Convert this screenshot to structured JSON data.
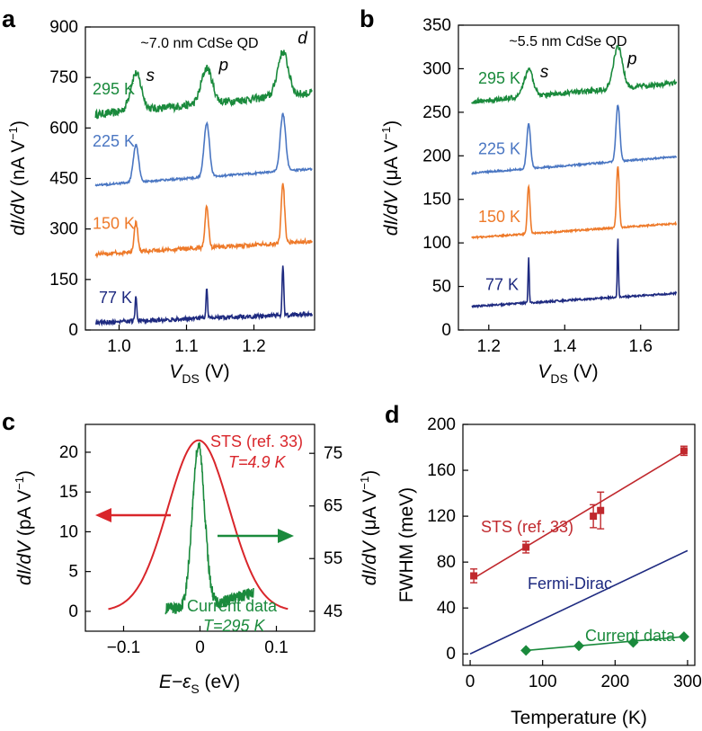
{
  "chart_data": [
    {
      "panel": "a",
      "type": "line",
      "title": "~7.0 nm CdSe QD",
      "xlabel": {
        "main": "V",
        "sub": "DS",
        "unit": " (V)"
      },
      "ylabel": {
        "italic": "dI/dV",
        "unit": " (nA V",
        "sup": "−1",
        "close": ")"
      },
      "xlim": [
        0.95,
        1.29
      ],
      "ylim": [
        0,
        900
      ],
      "xticks": [
        1.0,
        1.1,
        1.2
      ],
      "xtick_labels": [
        "1.0",
        "1.1",
        "1.2"
      ],
      "yticks": [
        0,
        150,
        300,
        450,
        600,
        750,
        900
      ],
      "ytick_labels": [
        "0",
        "150",
        "300",
        "450",
        "600",
        "750",
        "900"
      ],
      "peak_labels": [
        {
          "text": "s",
          "x": 1.04,
          "y": 740
        },
        {
          "text": "p",
          "x": 1.148,
          "y": 770
        },
        {
          "text": "d",
          "x": 1.265,
          "y": 850
        }
      ],
      "series": [
        {
          "name": "295 K",
          "color": "#1a8a3c",
          "base": 640,
          "slope": 200,
          "start": 0.965,
          "width": 0.008,
          "heights": [
            110,
            105,
            130
          ],
          "noise": 12,
          "label_y": 700
        },
        {
          "name": "225 K",
          "color": "#4a76c2",
          "base": 430,
          "slope": 150,
          "start": 0.965,
          "width": 0.004,
          "heights": [
            110,
            160,
            170
          ],
          "noise": 3,
          "label_y": 545
        },
        {
          "name": "150 K",
          "color": "#ee7a2a",
          "base": 225,
          "slope": 120,
          "start": 0.965,
          "width": 0.0025,
          "heights": [
            90,
            125,
            180
          ],
          "noise": 6,
          "label_y": 300
        },
        {
          "name": "77 K",
          "color": "#1e2a80",
          "base": 22,
          "slope": 80,
          "start": 0.965,
          "width": 0.0012,
          "heights": [
            75,
            85,
            145
          ],
          "noise": 6,
          "label_y": 80
        }
      ],
      "peak_centers": [
        1.025,
        1.13,
        1.243
      ]
    },
    {
      "panel": "b",
      "type": "line",
      "title": "~5.5 nm CdSe QD",
      "xlabel": {
        "main": "V",
        "sub": "DS",
        "unit": " (V)"
      },
      "ylabel": {
        "italic": "dI/dV",
        "unit": " (μA V",
        "sup": "−1",
        "close": ")"
      },
      "xlim": [
        1.12,
        1.7
      ],
      "ylim": [
        0,
        350
      ],
      "xticks": [
        1.2,
        1.4,
        1.6
      ],
      "xtick_labels": [
        "1.2",
        "1.4",
        "1.6"
      ],
      "yticks": [
        0,
        50,
        100,
        150,
        200,
        250,
        300,
        350
      ],
      "ytick_labels": [
        "0",
        "50",
        "100",
        "150",
        "200",
        "250",
        "300",
        "350"
      ],
      "peak_labels": [
        {
          "text": "s",
          "x": 1.335,
          "y": 290
        },
        {
          "text": "p",
          "x": 1.565,
          "y": 305
        }
      ],
      "series": [
        {
          "name": "295 K",
          "color": "#1a8a3c",
          "base": 262,
          "slope": 40,
          "start": 1.155,
          "width": 0.012,
          "heights": [
            30,
            48
          ],
          "noise": 3,
          "label_y": 283
        },
        {
          "name": "225 K",
          "color": "#4a76c2",
          "base": 180,
          "slope": 35,
          "start": 1.155,
          "width": 0.005,
          "heights": [
            52,
            65
          ],
          "noise": 1,
          "label_y": 202
        },
        {
          "name": "150 K",
          "color": "#ee7a2a",
          "base": 106,
          "slope": 30,
          "start": 1.155,
          "width": 0.0035,
          "heights": [
            55,
            70
          ],
          "noise": 1,
          "label_y": 124
        },
        {
          "name": "77 K",
          "color": "#1e2a80",
          "base": 27,
          "slope": 28,
          "start": 1.155,
          "width": 0.0015,
          "heights": [
            52,
            68
          ],
          "noise": 1,
          "label_y": 46
        }
      ],
      "peak_centers": [
        1.305,
        1.54
      ]
    },
    {
      "panel": "c",
      "type": "line",
      "xlabel": {
        "main": "E−ε",
        "sub": "S",
        "unit": " (eV)"
      },
      "ylabel_left": {
        "italic": "dI/dV",
        "unit": " (pA V",
        "sup": "−1",
        "close": ")"
      },
      "ylabel_right": {
        "italic": "dI/dV",
        "unit": " (μA V",
        "sup": "−1",
        "close": ")"
      },
      "xlim": [
        -0.15,
        0.15
      ],
      "ylim_left": [
        -2.5,
        23.5
      ],
      "ylim_right": [
        41.2,
        80.5
      ],
      "xticks": [
        -0.1,
        0.0,
        0.1
      ],
      "xtick_labels": [
        "−0.1",
        "0",
        "0.1"
      ],
      "yticks_left": [
        0,
        5,
        10,
        15,
        20
      ],
      "ytick_labels_left": [
        "0",
        "5",
        "10",
        "15",
        "20"
      ],
      "yticks_right": [
        45,
        55,
        65,
        75
      ],
      "ytick_labels_right": [
        "45",
        "55",
        "65",
        "75"
      ],
      "series": [
        {
          "name": "STS (ref. 33)",
          "sub": "T=4.9 K",
          "color": "#d9262b",
          "center": -0.002,
          "sigma": 0.04,
          "peak": 21.5,
          "floor": 0.0,
          "xmin": -0.12,
          "xmax": 0.115
        },
        {
          "name": "Current data",
          "sub": "T=295 K",
          "color": "#1a8a3c",
          "center": -0.002,
          "width": 0.008,
          "peak": 76.5,
          "floor": 45.5,
          "xmin": -0.045,
          "xmax": 0.07
        }
      ],
      "arrow_left_color": "#d9262b",
      "arrow_right_color": "#1a8a3c"
    },
    {
      "panel": "d",
      "type": "scatter",
      "xlabel": "Temperature (K)",
      "ylabel": "FWHM (meV)",
      "xlim": [
        -10,
        310
      ],
      "ylim": [
        -10,
        200
      ],
      "xticks": [
        0,
        100,
        200,
        300
      ],
      "xtick_labels": [
        "0",
        "100",
        "200",
        "300"
      ],
      "yticks": [
        0,
        40,
        80,
        120,
        160,
        200
      ],
      "ytick_labels": [
        "0",
        "40",
        "80",
        "120",
        "160",
        "200"
      ],
      "series": [
        {
          "name": "STS (ref. 33)",
          "color": "#c0282d",
          "marker": "square",
          "x": [
            5,
            77,
            170,
            180,
            295
          ],
          "y": [
            68,
            93,
            120,
            125,
            177
          ],
          "err": [
            6,
            5,
            10,
            16,
            4
          ],
          "fit": [
            [
              5,
              66
            ],
            [
              300,
              178
            ]
          ]
        },
        {
          "name": "Fermi-Dirac",
          "color": "#1e2a80",
          "marker": "none",
          "fit": [
            [
              0,
              0
            ],
            [
              300,
              90
            ]
          ]
        },
        {
          "name": "Current data",
          "color": "#1a8a3c",
          "marker": "diamond",
          "x": [
            77,
            150,
            225,
            295
          ],
          "y": [
            3,
            7,
            10,
            15
          ],
          "fit": [
            [
              77,
              3
            ],
            [
              295,
              15
            ]
          ]
        }
      ]
    }
  ]
}
